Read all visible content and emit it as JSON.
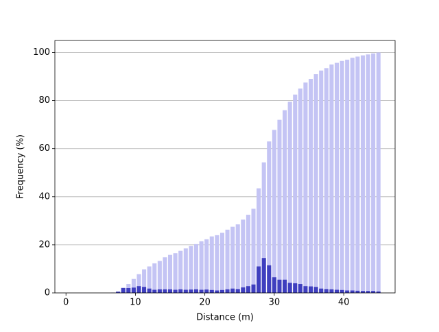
{
  "chart_data": {
    "type": "bar",
    "xlabel": "Distance (m)",
    "ylabel": "Frequency (%)",
    "x": [
      0,
      0.75,
      1.5,
      2.25,
      3,
      3.75,
      4.5,
      5.25,
      6,
      6.75,
      7.5,
      8.25,
      9,
      9.75,
      10.5,
      11.25,
      12,
      12.75,
      13.5,
      14.25,
      15,
      15.75,
      16.5,
      17.25,
      18,
      18.75,
      19.5,
      20.25,
      21,
      21.75,
      22.5,
      23.25,
      24,
      24.75,
      25.5,
      26.25,
      27,
      27.75,
      28.5,
      29.25,
      30,
      30.75,
      31.5,
      32.25,
      33,
      33.75,
      34.5,
      35.25,
      36,
      36.75,
      37.5,
      38.25,
      39,
      39.75,
      40.5,
      41.25,
      42,
      42.75,
      43.5,
      44.25,
      45
    ],
    "bar_width": 0.6,
    "series": [
      {
        "color": "#c4c4f4",
        "values": [
          0,
          0,
          0,
          0,
          0,
          0,
          0,
          0,
          0,
          0.1,
          0.6,
          2.2,
          3.7,
          5.8,
          7.8,
          9.8,
          11,
          12.3,
          13.3,
          14.8,
          15.8,
          16.5,
          17.5,
          18.5,
          19.5,
          20.3,
          21.5,
          22.3,
          23.5,
          24,
          25,
          26.3,
          27.5,
          28.5,
          30.5,
          32.5,
          35,
          43.5,
          54.3,
          63,
          67.8,
          72,
          76,
          79.5,
          82.5,
          85,
          87.5,
          89,
          91,
          92.5,
          93.5,
          95,
          95.7,
          96.5,
          97,
          97.8,
          98.3,
          98.8,
          99.2,
          99.6,
          100
        ]
      },
      {
        "color": "#3f3fbf",
        "values": [
          0,
          0,
          0,
          0,
          0,
          0,
          0,
          0,
          0,
          0.1,
          0.5,
          2,
          2,
          2.2,
          2.8,
          2.5,
          1.8,
          1.3,
          1.5,
          1.5,
          1.5,
          1.3,
          1.5,
          1.3,
          1.4,
          1.5,
          1.3,
          1.4,
          1.2,
          1,
          1.2,
          1.5,
          1.8,
          1.6,
          2.3,
          2.8,
          3.5,
          11,
          14.5,
          11.5,
          6.5,
          5.5,
          5.5,
          4.2,
          4,
          3.7,
          2.8,
          2.7,
          2.5,
          1.8,
          1.6,
          1.5,
          1.3,
          1.2,
          1,
          1,
          0.9,
          0.8,
          0.8,
          0.8,
          0.6
        ]
      }
    ],
    "xlim": [
      -1.6,
      47.4
    ],
    "xticks": [
      0,
      10,
      20,
      30,
      40
    ],
    "ylim": [
      0,
      105
    ],
    "yticks": [
      0,
      20,
      40,
      60,
      80,
      100
    ],
    "grid": true
  }
}
